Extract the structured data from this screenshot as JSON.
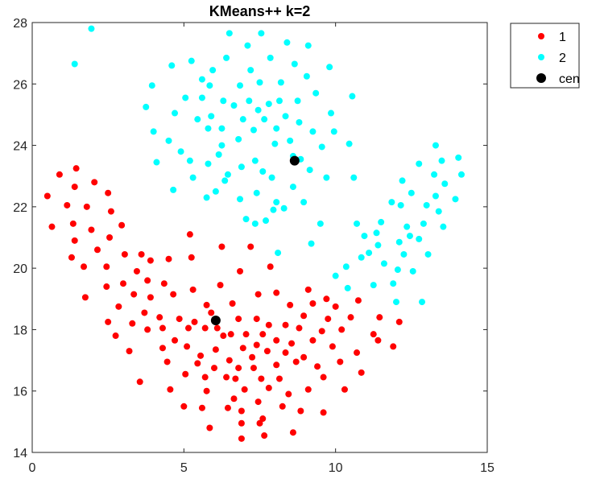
{
  "chart_data": {
    "type": "scatter",
    "title": "KMeans++ k=2",
    "xlabel": "",
    "ylabel": "",
    "xlim": [
      0,
      15
    ],
    "ylim": [
      14,
      28
    ],
    "xticks": [
      0,
      5,
      10,
      15
    ],
    "yticks": [
      14,
      16,
      18,
      20,
      22,
      24,
      26,
      28
    ],
    "grid": false,
    "legend_position": "outside-top-right",
    "series": [
      {
        "name": "1",
        "color": "#ff0000",
        "points": [
          [
            0.5,
            22.35
          ],
          [
            0.65,
            21.35
          ],
          [
            0.9,
            23.05
          ],
          [
            1.15,
            22.05
          ],
          [
            1.3,
            20.35
          ],
          [
            1.35,
            21.45
          ],
          [
            1.4,
            20.9
          ],
          [
            1.4,
            22.65
          ],
          [
            1.45,
            23.25
          ],
          [
            1.7,
            20.05
          ],
          [
            1.75,
            19.05
          ],
          [
            1.8,
            22.0
          ],
          [
            1.95,
            21.25
          ],
          [
            2.05,
            22.8
          ],
          [
            2.15,
            20.6
          ],
          [
            2.45,
            20.05
          ],
          [
            2.45,
            19.4
          ],
          [
            2.5,
            18.25
          ],
          [
            2.5,
            22.45
          ],
          [
            2.55,
            21.0
          ],
          [
            2.6,
            21.85
          ],
          [
            2.75,
            17.8
          ],
          [
            2.85,
            18.75
          ],
          [
            2.95,
            21.4
          ],
          [
            3.0,
            19.5
          ],
          [
            3.05,
            20.45
          ],
          [
            3.2,
            17.3
          ],
          [
            3.3,
            18.2
          ],
          [
            3.35,
            19.15
          ],
          [
            3.45,
            19.9
          ],
          [
            3.55,
            16.3
          ],
          [
            3.6,
            20.45
          ],
          [
            3.7,
            18.55
          ],
          [
            3.8,
            19.6
          ],
          [
            3.8,
            18.0
          ],
          [
            3.9,
            20.25
          ],
          [
            3.9,
            19.05
          ],
          [
            4.2,
            18.4
          ],
          [
            4.3,
            17.4
          ],
          [
            4.3,
            18.05
          ],
          [
            4.35,
            19.5
          ],
          [
            4.45,
            16.95
          ],
          [
            4.5,
            20.3
          ],
          [
            4.55,
            16.05
          ],
          [
            4.65,
            19.15
          ],
          [
            4.7,
            17.65
          ],
          [
            4.85,
            18.35
          ],
          [
            5.0,
            15.5
          ],
          [
            5.05,
            16.55
          ],
          [
            5.1,
            17.45
          ],
          [
            5.15,
            18.05
          ],
          [
            5.2,
            21.1
          ],
          [
            5.25,
            20.35
          ],
          [
            5.3,
            19.3
          ],
          [
            5.35,
            18.25
          ],
          [
            5.45,
            16.9
          ],
          [
            5.55,
            17.15
          ],
          [
            5.6,
            15.45
          ],
          [
            5.7,
            16.45
          ],
          [
            5.7,
            18.05
          ],
          [
            5.75,
            18.8
          ],
          [
            5.75,
            16.0
          ],
          [
            5.85,
            14.8
          ],
          [
            5.9,
            18.55
          ],
          [
            6.0,
            16.75
          ],
          [
            6.05,
            17.35
          ],
          [
            6.1,
            18.05
          ],
          [
            6.2,
            19.45
          ],
          [
            6.25,
            20.7
          ],
          [
            6.3,
            17.8
          ],
          [
            6.4,
            16.45
          ],
          [
            6.45,
            15.45
          ],
          [
            6.5,
            17.0
          ],
          [
            6.55,
            17.85
          ],
          [
            6.6,
            18.85
          ],
          [
            6.65,
            15.75
          ],
          [
            6.7,
            16.4
          ],
          [
            6.8,
            16.75
          ],
          [
            6.8,
            18.35
          ],
          [
            6.85,
            19.9
          ],
          [
            6.9,
            15.35
          ],
          [
            6.9,
            14.95
          ],
          [
            6.9,
            14.45
          ],
          [
            6.95,
            17.4
          ],
          [
            7.0,
            16.05
          ],
          [
            7.05,
            17.85
          ],
          [
            7.2,
            20.7
          ],
          [
            7.25,
            17.1
          ],
          [
            7.3,
            16.75
          ],
          [
            7.4,
            17.5
          ],
          [
            7.4,
            18.35
          ],
          [
            7.45,
            19.15
          ],
          [
            7.45,
            15.65
          ],
          [
            7.5,
            14.95
          ],
          [
            7.55,
            16.4
          ],
          [
            7.6,
            15.1
          ],
          [
            7.6,
            17.85
          ],
          [
            7.65,
            14.55
          ],
          [
            7.75,
            17.3
          ],
          [
            7.8,
            16.1
          ],
          [
            7.8,
            18.15
          ],
          [
            7.85,
            20.05
          ],
          [
            8.05,
            16.85
          ],
          [
            8.05,
            17.65
          ],
          [
            8.05,
            19.2
          ],
          [
            8.15,
            16.4
          ],
          [
            8.25,
            15.5
          ],
          [
            8.35,
            17.25
          ],
          [
            8.35,
            18.15
          ],
          [
            8.45,
            15.9
          ],
          [
            8.5,
            18.8
          ],
          [
            8.55,
            17.55
          ],
          [
            8.6,
            14.65
          ],
          [
            8.7,
            16.95
          ],
          [
            8.8,
            18.05
          ],
          [
            8.85,
            15.35
          ],
          [
            8.95,
            17.1
          ],
          [
            8.95,
            18.45
          ],
          [
            9.1,
            19.3
          ],
          [
            9.1,
            16.05
          ],
          [
            9.25,
            17.65
          ],
          [
            9.25,
            18.85
          ],
          [
            9.4,
            16.8
          ],
          [
            9.55,
            17.95
          ],
          [
            9.6,
            15.3
          ],
          [
            9.6,
            16.45
          ],
          [
            9.7,
            19.0
          ],
          [
            9.75,
            18.35
          ],
          [
            9.9,
            17.45
          ],
          [
            10.0,
            18.75
          ],
          [
            10.15,
            16.95
          ],
          [
            10.2,
            18.0
          ],
          [
            10.3,
            16.05
          ],
          [
            10.5,
            18.4
          ],
          [
            10.7,
            17.25
          ],
          [
            10.75,
            18.95
          ],
          [
            10.85,
            16.6
          ],
          [
            11.25,
            17.85
          ],
          [
            11.4,
            17.65
          ],
          [
            11.45,
            18.4
          ],
          [
            11.9,
            17.45
          ],
          [
            12.1,
            18.25
          ]
        ]
      },
      {
        "name": "2",
        "color": "#00ffff",
        "points": [
          [
            1.4,
            26.65
          ],
          [
            1.95,
            27.8
          ],
          [
            3.75,
            25.25
          ],
          [
            3.95,
            25.95
          ],
          [
            4.0,
            24.45
          ],
          [
            4.1,
            23.45
          ],
          [
            4.5,
            24.15
          ],
          [
            4.6,
            26.6
          ],
          [
            4.65,
            22.55
          ],
          [
            4.7,
            25.05
          ],
          [
            4.9,
            23.8
          ],
          [
            5.05,
            25.55
          ],
          [
            5.2,
            23.5
          ],
          [
            5.25,
            26.75
          ],
          [
            5.3,
            22.95
          ],
          [
            5.45,
            24.85
          ],
          [
            5.6,
            25.55
          ],
          [
            5.6,
            26.15
          ],
          [
            5.75,
            22.3
          ],
          [
            5.8,
            23.4
          ],
          [
            5.8,
            24.55
          ],
          [
            5.85,
            25.95
          ],
          [
            5.9,
            24.95
          ],
          [
            5.95,
            26.45
          ],
          [
            6.05,
            22.5
          ],
          [
            6.15,
            23.7
          ],
          [
            6.25,
            24.0
          ],
          [
            6.25,
            24.55
          ],
          [
            6.3,
            25.45
          ],
          [
            6.35,
            22.85
          ],
          [
            6.4,
            26.85
          ],
          [
            6.45,
            23.05
          ],
          [
            6.5,
            27.65
          ],
          [
            6.65,
            25.3
          ],
          [
            6.8,
            24.2
          ],
          [
            6.85,
            25.95
          ],
          [
            6.85,
            22.25
          ],
          [
            6.9,
            23.3
          ],
          [
            6.95,
            24.85
          ],
          [
            7.05,
            21.6
          ],
          [
            7.1,
            27.25
          ],
          [
            7.15,
            25.45
          ],
          [
            7.2,
            26.45
          ],
          [
            7.3,
            24.5
          ],
          [
            7.35,
            23.5
          ],
          [
            7.35,
            21.45
          ],
          [
            7.4,
            22.45
          ],
          [
            7.45,
            25.15
          ],
          [
            7.5,
            26.05
          ],
          [
            7.55,
            27.65
          ],
          [
            7.6,
            23.15
          ],
          [
            7.65,
            24.85
          ],
          [
            7.7,
            21.55
          ],
          [
            7.8,
            25.35
          ],
          [
            7.85,
            26.85
          ],
          [
            7.9,
            22.95
          ],
          [
            8.0,
            24.05
          ],
          [
            8.05,
            24.55
          ],
          [
            8.05,
            22.15
          ],
          [
            8.15,
            25.45
          ],
          [
            8.2,
            26.05
          ],
          [
            8.3,
            21.95
          ],
          [
            8.35,
            24.95
          ],
          [
            8.4,
            27.35
          ],
          [
            8.5,
            24.15
          ],
          [
            8.6,
            23.65
          ],
          [
            8.6,
            22.65
          ],
          [
            8.65,
            26.65
          ],
          [
            8.75,
            25.45
          ],
          [
            8.8,
            24.75
          ],
          [
            8.85,
            23.55
          ],
          [
            8.95,
            22.15
          ],
          [
            9.05,
            26.25
          ],
          [
            9.1,
            27.25
          ],
          [
            9.15,
            23.2
          ],
          [
            9.25,
            24.45
          ],
          [
            9.35,
            25.7
          ],
          [
            9.5,
            21.45
          ],
          [
            9.55,
            23.95
          ],
          [
            9.7,
            22.95
          ],
          [
            9.8,
            26.55
          ],
          [
            9.85,
            25.05
          ],
          [
            9.95,
            24.45
          ],
          [
            10.0,
            19.75
          ],
          [
            10.35,
            20.05
          ],
          [
            10.4,
            19.35
          ],
          [
            10.45,
            24.05
          ],
          [
            10.55,
            25.6
          ],
          [
            10.6,
            22.95
          ],
          [
            10.7,
            21.45
          ],
          [
            10.85,
            20.35
          ],
          [
            10.95,
            21.05
          ],
          [
            11.1,
            20.5
          ],
          [
            11.25,
            19.45
          ],
          [
            11.35,
            21.15
          ],
          [
            11.4,
            20.75
          ],
          [
            11.5,
            21.5
          ],
          [
            11.6,
            20.15
          ],
          [
            11.85,
            22.15
          ],
          [
            11.9,
            19.5
          ],
          [
            12.05,
            19.95
          ],
          [
            12.1,
            20.85
          ],
          [
            12.15,
            22.05
          ],
          [
            12.25,
            20.45
          ],
          [
            12.35,
            21.35
          ],
          [
            12.45,
            21.05
          ],
          [
            12.5,
            22.45
          ],
          [
            12.55,
            19.9
          ],
          [
            12.75,
            20.95
          ],
          [
            12.9,
            21.45
          ],
          [
            13.0,
            22.05
          ],
          [
            13.05,
            20.45
          ],
          [
            13.25,
            23.05
          ],
          [
            13.3,
            22.35
          ],
          [
            13.4,
            21.85
          ],
          [
            13.55,
            21.35
          ],
          [
            13.6,
            22.75
          ],
          [
            13.95,
            22.25
          ],
          [
            14.05,
            23.6
          ],
          [
            14.15,
            23.05
          ],
          [
            8.1,
            20.5
          ],
          [
            9.2,
            20.8
          ],
          [
            7.95,
            21.9
          ],
          [
            12.0,
            18.9
          ],
          [
            12.85,
            18.9
          ],
          [
            12.2,
            22.85
          ],
          [
            12.75,
            23.4
          ],
          [
            13.3,
            24.0
          ],
          [
            13.5,
            23.5
          ]
        ]
      },
      {
        "name": "cen",
        "color": "#000000",
        "points": [
          [
            6.05,
            18.3
          ],
          [
            8.65,
            23.5
          ]
        ]
      }
    ]
  }
}
